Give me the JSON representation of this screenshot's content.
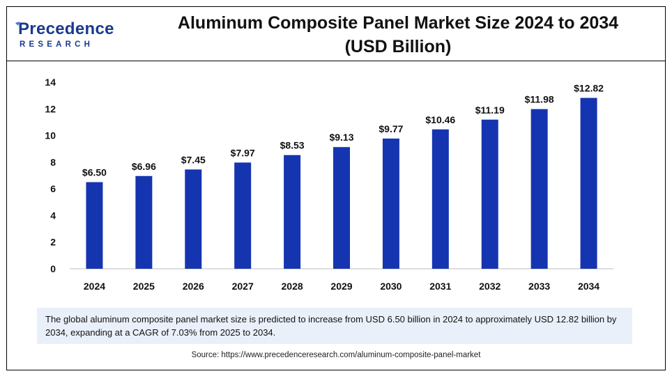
{
  "brand": {
    "name": "Precedence",
    "sub": "RESEARCH"
  },
  "header": {
    "title_line1": "Aluminum Composite Panel Market Size 2024 to 2034",
    "title_line2": "(USD Billion)"
  },
  "chart_data": {
    "type": "bar",
    "title": "Aluminum Composite Panel Market Size 2024 to 2034 (USD Billion)",
    "categories": [
      "2024",
      "2025",
      "2026",
      "2027",
      "2028",
      "2029",
      "2030",
      "2031",
      "2032",
      "2033",
      "2034"
    ],
    "values": [
      6.5,
      6.96,
      7.45,
      7.97,
      8.53,
      9.13,
      9.77,
      10.46,
      11.19,
      11.98,
      12.82
    ],
    "data_labels": [
      "$6.50",
      "$6.96",
      "$7.45",
      "$7.97",
      "$8.53",
      "$9.13",
      "$9.77",
      "$10.46",
      "$11.19",
      "$11.98",
      "$12.82"
    ],
    "y_ticks": [
      "0",
      "2",
      "4",
      "6",
      "8",
      "10",
      "12",
      "14"
    ],
    "ylim": [
      0,
      14
    ],
    "xlabel": "",
    "ylabel": "",
    "grid": false,
    "legend": "none",
    "bar_color": "#1535b0"
  },
  "summary": {
    "text": "The global aluminum composite panel market size is predicted to increase from USD 6.50 billion in 2024 to approximately USD 12.82 billion by 2034, expanding at a CAGR of 7.03% from 2025 to 2034."
  },
  "footer": {
    "source": "Source: https://www.precedenceresearch.com/aluminum-composite-panel-market"
  }
}
